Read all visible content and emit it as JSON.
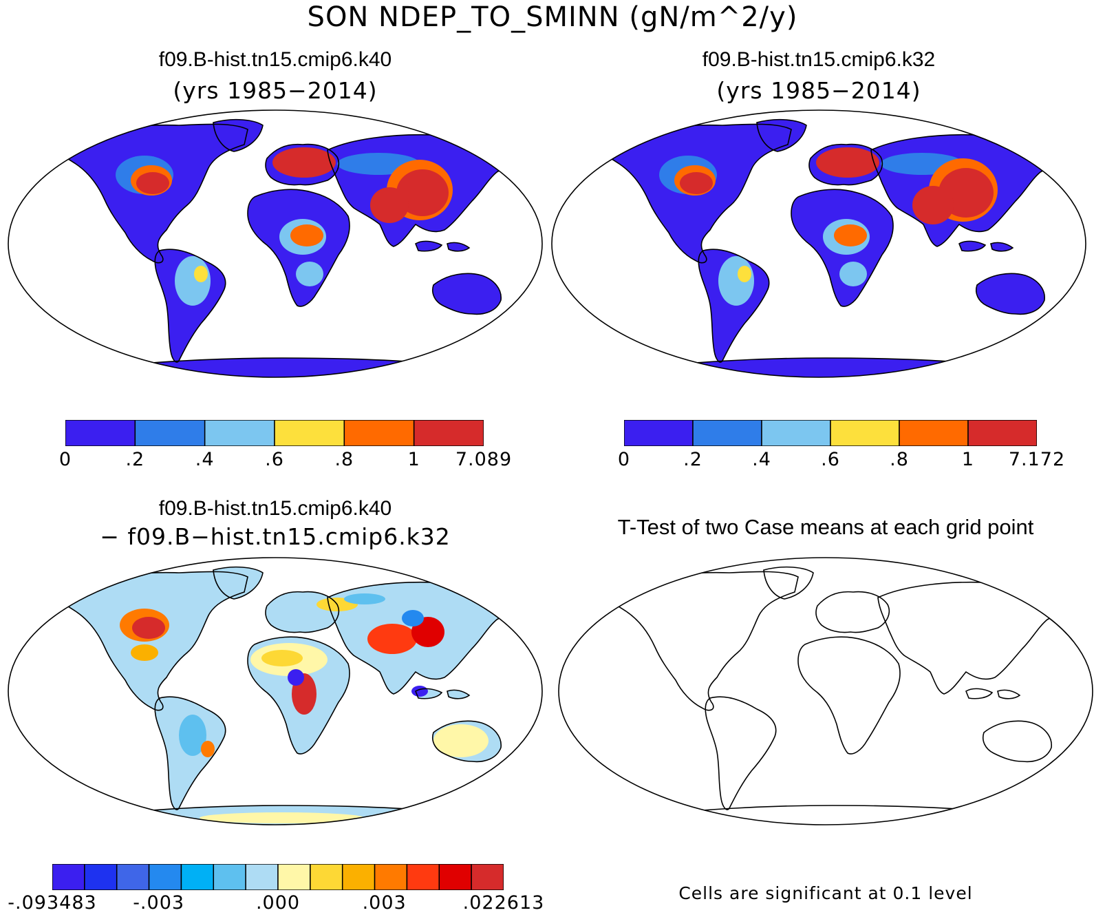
{
  "figure": {
    "title": "SON NDEP_TO_SMINN (gN/m^2/y)"
  },
  "panels": [
    {
      "id": "case1",
      "title": "f09.B-hist.tn15.cmip6.k40",
      "subtitle": "(yrs 1985−2014)"
    },
    {
      "id": "case2",
      "title": "f09.B-hist.tn15.cmip6.k32",
      "subtitle": "(yrs 1985−2014)"
    },
    {
      "id": "difference",
      "title": "f09.B-hist.tn15.cmip6.k40",
      "subtitle": "− f09.B−hist.tn15.cmip6.k32"
    },
    {
      "id": "ttest",
      "title": "T-Test of two Case means at each grid point",
      "footnote": "Cells are significant at 0.1 level"
    }
  ],
  "colorbars": {
    "case1": {
      "colors": [
        "#3b1ff0",
        "#2f7de9",
        "#7cc6f0",
        "#fde03c",
        "#ff6a00",
        "#d62b2b"
      ],
      "labels": [
        "0",
        ".2",
        ".4",
        ".6",
        ".8",
        "1",
        "7.089"
      ]
    },
    "case2": {
      "colors": [
        "#3b1ff0",
        "#2f7de9",
        "#7cc6f0",
        "#fde03c",
        "#ff6a00",
        "#d62b2b"
      ],
      "labels": [
        "0",
        ".2",
        ".4",
        ".6",
        ".8",
        "1",
        "7.172"
      ]
    },
    "difference": {
      "colors": [
        "#3b1ff0",
        "#1e32f0",
        "#3f66e8",
        "#2489ef",
        "#00b0f5",
        "#5ec0ef",
        "#aedcf4",
        "#fff7a8",
        "#fdd835",
        "#fbb000",
        "#ff7a00",
        "#ff3a10",
        "#e00000",
        "#d62b2b"
      ],
      "labels": [
        "-.093483",
        "-.003",
        ".000",
        ".003",
        ".022613"
      ]
    }
  }
}
